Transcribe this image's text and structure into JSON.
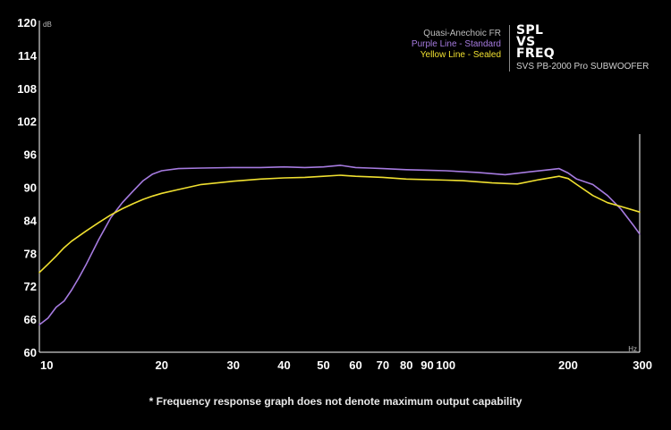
{
  "legend": {
    "title": "Quasi-Anechoic FR",
    "purple": "Purple Line - Standard",
    "yellow": "Yellow Line - Sealed"
  },
  "brand": {
    "line1": "SPL",
    "line2": "VS",
    "line3": "FREQ",
    "subtitle": "SVS PB-2000 Pro SUBWOOFER"
  },
  "footnote": "* Frequency response graph does not denote maximum output capability",
  "colors": {
    "background": "#000000",
    "purple": "#a67be0",
    "yellow": "#f0e030",
    "axis": "#ffffff"
  },
  "chart_data": {
    "type": "line",
    "xscale": "log",
    "xlim": [
      10,
      300
    ],
    "ylim": [
      60,
      120
    ],
    "x_ticks": [
      10,
      20,
      30,
      40,
      50,
      60,
      70,
      80,
      90,
      100,
      200,
      300
    ],
    "y_ticks": [
      60,
      66,
      72,
      78,
      84,
      90,
      96,
      102,
      108,
      114,
      120
    ],
    "x_unit": "Hz",
    "y_unit": "dB",
    "grid": false,
    "series": [
      {
        "name": "Purple Line - Standard",
        "color": "#a67be0",
        "points": [
          [
            10,
            65
          ],
          [
            10.5,
            66.2
          ],
          [
            11,
            68.2
          ],
          [
            11.5,
            69.3
          ],
          [
            12,
            71.3
          ],
          [
            12.5,
            73.5
          ],
          [
            13,
            75.8
          ],
          [
            14,
            80.5
          ],
          [
            15,
            84.5
          ],
          [
            16,
            87.2
          ],
          [
            17,
            89.3
          ],
          [
            18,
            91.2
          ],
          [
            19,
            92.4
          ],
          [
            20,
            93
          ],
          [
            22,
            93.4
          ],
          [
            25,
            93.5
          ],
          [
            30,
            93.6
          ],
          [
            35,
            93.6
          ],
          [
            40,
            93.7
          ],
          [
            45,
            93.6
          ],
          [
            50,
            93.7
          ],
          [
            55,
            94
          ],
          [
            60,
            93.6
          ],
          [
            65,
            93.5
          ],
          [
            70,
            93.4
          ],
          [
            80,
            93.2
          ],
          [
            90,
            93.1
          ],
          [
            100,
            93
          ],
          [
            120,
            92.7
          ],
          [
            140,
            92.3
          ],
          [
            160,
            92.8
          ],
          [
            180,
            93.2
          ],
          [
            190,
            93.4
          ],
          [
            200,
            92.6
          ],
          [
            210,
            91.5
          ],
          [
            230,
            90.5
          ],
          [
            250,
            88.5
          ],
          [
            270,
            86
          ],
          [
            290,
            83
          ],
          [
            300,
            81.5
          ]
        ]
      },
      {
        "name": "Yellow Line - Sealed",
        "color": "#f0e030",
        "points": [
          [
            10,
            74.5
          ],
          [
            10.5,
            76
          ],
          [
            11,
            77.5
          ],
          [
            11.5,
            79
          ],
          [
            12,
            80.2
          ],
          [
            13,
            82
          ],
          [
            14,
            83.6
          ],
          [
            15,
            85
          ],
          [
            16,
            86.1
          ],
          [
            17,
            87
          ],
          [
            18,
            87.8
          ],
          [
            19,
            88.4
          ],
          [
            20,
            88.9
          ],
          [
            22,
            89.6
          ],
          [
            25,
            90.5
          ],
          [
            30,
            91.1
          ],
          [
            35,
            91.5
          ],
          [
            40,
            91.7
          ],
          [
            45,
            91.8
          ],
          [
            50,
            92
          ],
          [
            55,
            92.2
          ],
          [
            60,
            92
          ],
          [
            65,
            91.9
          ],
          [
            70,
            91.8
          ],
          [
            80,
            91.5
          ],
          [
            90,
            91.4
          ],
          [
            100,
            91.3
          ],
          [
            110,
            91.2
          ],
          [
            130,
            90.8
          ],
          [
            150,
            90.6
          ],
          [
            170,
            91.4
          ],
          [
            190,
            92
          ],
          [
            200,
            91.6
          ],
          [
            210,
            90.5
          ],
          [
            230,
            88.5
          ],
          [
            250,
            87.2
          ],
          [
            270,
            86.5
          ],
          [
            300,
            85.5
          ]
        ]
      }
    ]
  }
}
